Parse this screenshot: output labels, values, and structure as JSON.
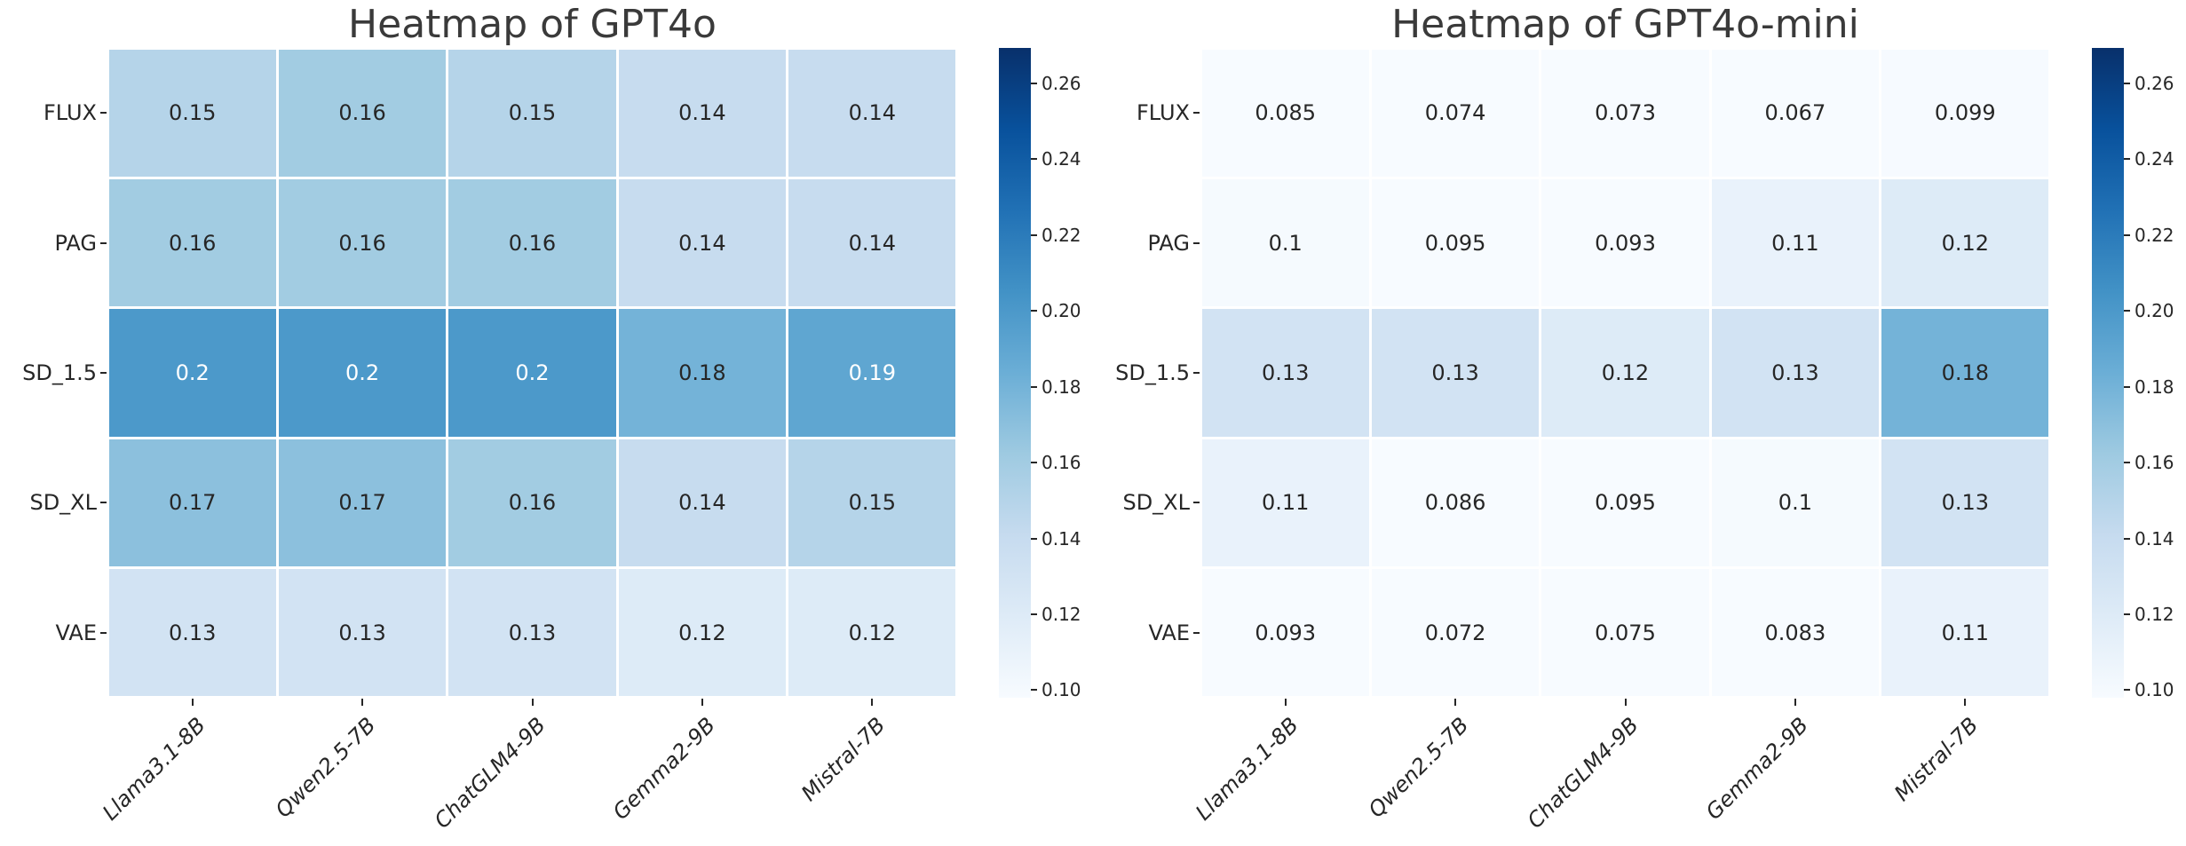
{
  "page": {
    "background": "#ffffff"
  },
  "chart_data": [
    {
      "type": "heatmap",
      "title": "Heatmap of GPT4o",
      "rows": [
        "FLUX",
        "PAG",
        "SD_1.5",
        "SD_XL",
        "VAE"
      ],
      "columns": [
        "Llama3.1-8B",
        "Qwen2.5-7B",
        "ChatGLM4-9B",
        "Gemma2-9B",
        "Mistral-7B"
      ],
      "values": [
        [
          0.15,
          0.16,
          0.15,
          0.14,
          0.14
        ],
        [
          0.16,
          0.16,
          0.16,
          0.14,
          0.14
        ],
        [
          0.2,
          0.2,
          0.2,
          0.18,
          0.19
        ],
        [
          0.17,
          0.17,
          0.16,
          0.14,
          0.15
        ],
        [
          0.13,
          0.13,
          0.13,
          0.12,
          0.12
        ]
      ],
      "annotations": [
        [
          "0.15",
          "0.16",
          "0.15",
          "0.14",
          "0.14"
        ],
        [
          "0.16",
          "0.16",
          "0.16",
          "0.14",
          "0.14"
        ],
        [
          "0.2",
          "0.2",
          "0.2",
          "0.18",
          "0.19"
        ],
        [
          "0.17",
          "0.17",
          "0.16",
          "0.14",
          "0.15"
        ],
        [
          "0.13",
          "0.13",
          "0.13",
          "0.12",
          "0.12"
        ]
      ],
      "colorbar": {
        "tick_labels": [
          "0.26",
          "0.24",
          "0.22",
          "0.20",
          "0.18",
          "0.16",
          "0.14",
          "0.12",
          "0.10"
        ],
        "tick_values": [
          0.26,
          0.24,
          0.22,
          0.2,
          0.18,
          0.16,
          0.14,
          0.12,
          0.1
        ],
        "vmin": 0.098,
        "vmax": 0.2693
      },
      "colormap": "Blues",
      "legend_position": "right",
      "grid": false
    },
    {
      "type": "heatmap",
      "title": "Heatmap of GPT4o-mini",
      "rows": [
        "FLUX",
        "PAG",
        "SD_1.5",
        "SD_XL",
        "VAE"
      ],
      "columns": [
        "Llama3.1-8B",
        "Qwen2.5-7B",
        "ChatGLM4-9B",
        "Gemma2-9B",
        "Mistral-7B"
      ],
      "values": [
        [
          0.085,
          0.074,
          0.073,
          0.067,
          0.099
        ],
        [
          0.1,
          0.095,
          0.093,
          0.11,
          0.12
        ],
        [
          0.13,
          0.13,
          0.12,
          0.13,
          0.18
        ],
        [
          0.11,
          0.086,
          0.095,
          0.1,
          0.13
        ],
        [
          0.093,
          0.072,
          0.075,
          0.083,
          0.11
        ]
      ],
      "annotations": [
        [
          "0.085",
          "0.074",
          "0.073",
          "0.067",
          "0.099"
        ],
        [
          "0.1",
          "0.095",
          "0.093",
          "0.11",
          "0.12"
        ],
        [
          "0.13",
          "0.13",
          "0.12",
          "0.13",
          "0.18"
        ],
        [
          "0.11",
          "0.086",
          "0.095",
          "0.1",
          "0.13"
        ],
        [
          "0.093",
          "0.072",
          "0.075",
          "0.083",
          "0.11"
        ]
      ],
      "colorbar": {
        "tick_labels": [
          "0.26",
          "0.24",
          "0.22",
          "0.20",
          "0.18",
          "0.16",
          "0.14",
          "0.12",
          "0.10"
        ],
        "tick_values": [
          0.26,
          0.24,
          0.22,
          0.2,
          0.18,
          0.16,
          0.14,
          0.12,
          0.1
        ],
        "vmin": 0.098,
        "vmax": 0.2693
      },
      "colormap": "Blues",
      "legend_position": "right",
      "grid": false
    }
  ],
  "palette": {
    "blues_anchors": [
      "#f7fbff",
      "#deebf7",
      "#c6dbef",
      "#9ecae1",
      "#6baed6",
      "#4292c6",
      "#2171b5",
      "#08519c",
      "#08306b"
    ],
    "annotation_dark": "#262626",
    "annotation_light": "#ffffff",
    "tick_color": "#262626",
    "title_color": "#3a3a3a"
  }
}
